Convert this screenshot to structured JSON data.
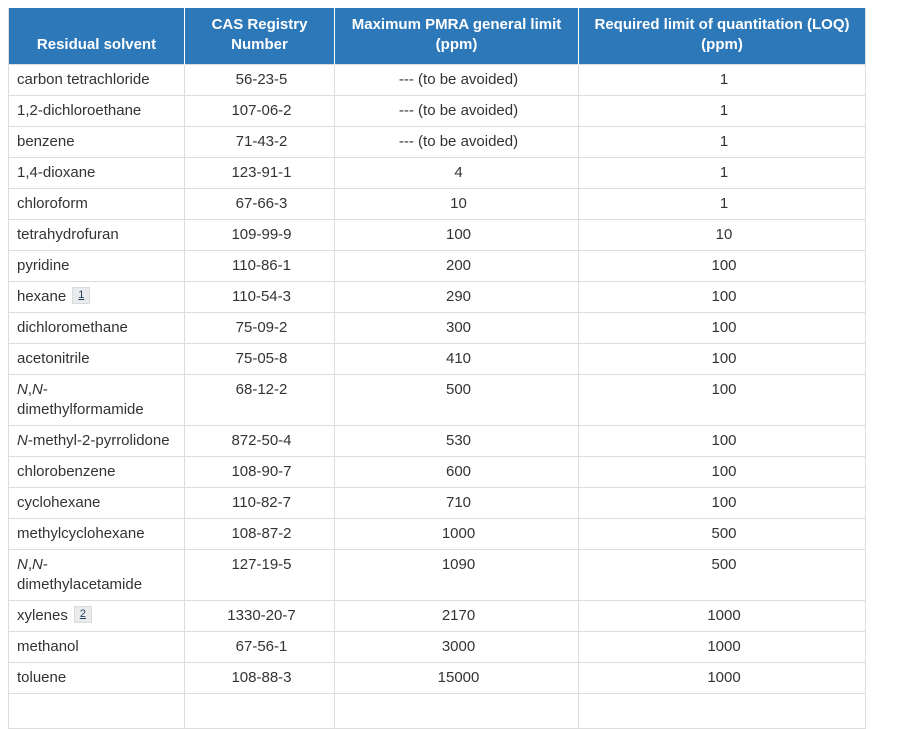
{
  "colors": {
    "header_bg": "#2d78b9",
    "header_text": "#ffffff",
    "border": "#dddddd",
    "body_text": "#333333",
    "footnote_bg": "#eaebed",
    "footnote_text": "#284162"
  },
  "table": {
    "columns": [
      {
        "label": "Residual solvent"
      },
      {
        "label": "CAS Registry Number"
      },
      {
        "label": "Maximum PMRA general limit (ppm)"
      },
      {
        "label": "Required limit of quantitation (LOQ) (ppm)"
      }
    ],
    "rows": [
      {
        "solvent_runs": [
          {
            "t": "carbon tetrachloride"
          }
        ],
        "cas": "56-23-5",
        "pmra": "--- (to be avoided)",
        "loq": "1"
      },
      {
        "solvent_runs": [
          {
            "t": "1,2-dichloroethane"
          }
        ],
        "cas": "107-06-2",
        "pmra": "--- (to be avoided)",
        "loq": "1"
      },
      {
        "solvent_runs": [
          {
            "t": "benzene"
          }
        ],
        "cas": "71-43-2",
        "pmra": "--- (to be avoided)",
        "loq": "1"
      },
      {
        "solvent_runs": [
          {
            "t": "1,4-dioxane"
          }
        ],
        "cas": "123-91-1",
        "pmra": "4",
        "loq": "1"
      },
      {
        "solvent_runs": [
          {
            "t": "chloroform"
          }
        ],
        "cas": "67-66-3",
        "pmra": "10",
        "loq": "1"
      },
      {
        "solvent_runs": [
          {
            "t": "tetrahydrofuran"
          }
        ],
        "cas": "109-99-9",
        "pmra": "100",
        "loq": "10"
      },
      {
        "solvent_runs": [
          {
            "t": "pyridine"
          }
        ],
        "cas": "110-86-1",
        "pmra": "200",
        "loq": "100"
      },
      {
        "solvent_runs": [
          {
            "t": "hexane"
          }
        ],
        "footnote": "1",
        "cas": "110-54-3",
        "pmra": "290",
        "loq": "100"
      },
      {
        "solvent_runs": [
          {
            "t": "dichloromethane"
          }
        ],
        "cas": "75-09-2",
        "pmra": "300",
        "loq": "100"
      },
      {
        "solvent_runs": [
          {
            "t": "acetonitrile"
          }
        ],
        "cas": "75-05-8",
        "pmra": "410",
        "loq": "100"
      },
      {
        "solvent_runs": [
          {
            "t": "N",
            "i": true
          },
          {
            "t": ","
          },
          {
            "t": "N",
            "i": true
          },
          {
            "t": "-"
          },
          {
            "br": true
          },
          {
            "t": "dimethylformamide"
          }
        ],
        "cas": "68-12-2",
        "pmra": "500",
        "loq": "100"
      },
      {
        "solvent_runs": [
          {
            "t": "N",
            "i": true
          },
          {
            "t": "-methyl-2-pyrrolidone"
          }
        ],
        "cas": "872-50-4",
        "pmra": "530",
        "loq": "100"
      },
      {
        "solvent_runs": [
          {
            "t": "chlorobenzene"
          }
        ],
        "cas": "108-90-7",
        "pmra": "600",
        "loq": "100"
      },
      {
        "solvent_runs": [
          {
            "t": "cyclohexane"
          }
        ],
        "cas": "110-82-7",
        "pmra": "710",
        "loq": "100"
      },
      {
        "solvent_runs": [
          {
            "t": "methylcyclohexane"
          }
        ],
        "cas": "108-87-2",
        "pmra": "1000",
        "loq": "500"
      },
      {
        "solvent_runs": [
          {
            "t": "N",
            "i": true
          },
          {
            "t": ","
          },
          {
            "t": "N",
            "i": true
          },
          {
            "t": "-"
          },
          {
            "br": true
          },
          {
            "t": "dimethylacetamide"
          }
        ],
        "cas": "127-19-5",
        "pmra": "1090",
        "loq": "500"
      },
      {
        "solvent_runs": [
          {
            "t": "xylenes"
          }
        ],
        "footnote": "2",
        "cas": "1330-20-7",
        "pmra": "2170",
        "loq": "1000"
      },
      {
        "solvent_runs": [
          {
            "t": "methanol"
          }
        ],
        "cas": "67-56-1",
        "pmra": "3000",
        "loq": "1000"
      },
      {
        "solvent_runs": [
          {
            "t": "toluene"
          }
        ],
        "cas": "108-88-3",
        "pmra": "15000",
        "loq": "1000"
      }
    ]
  }
}
